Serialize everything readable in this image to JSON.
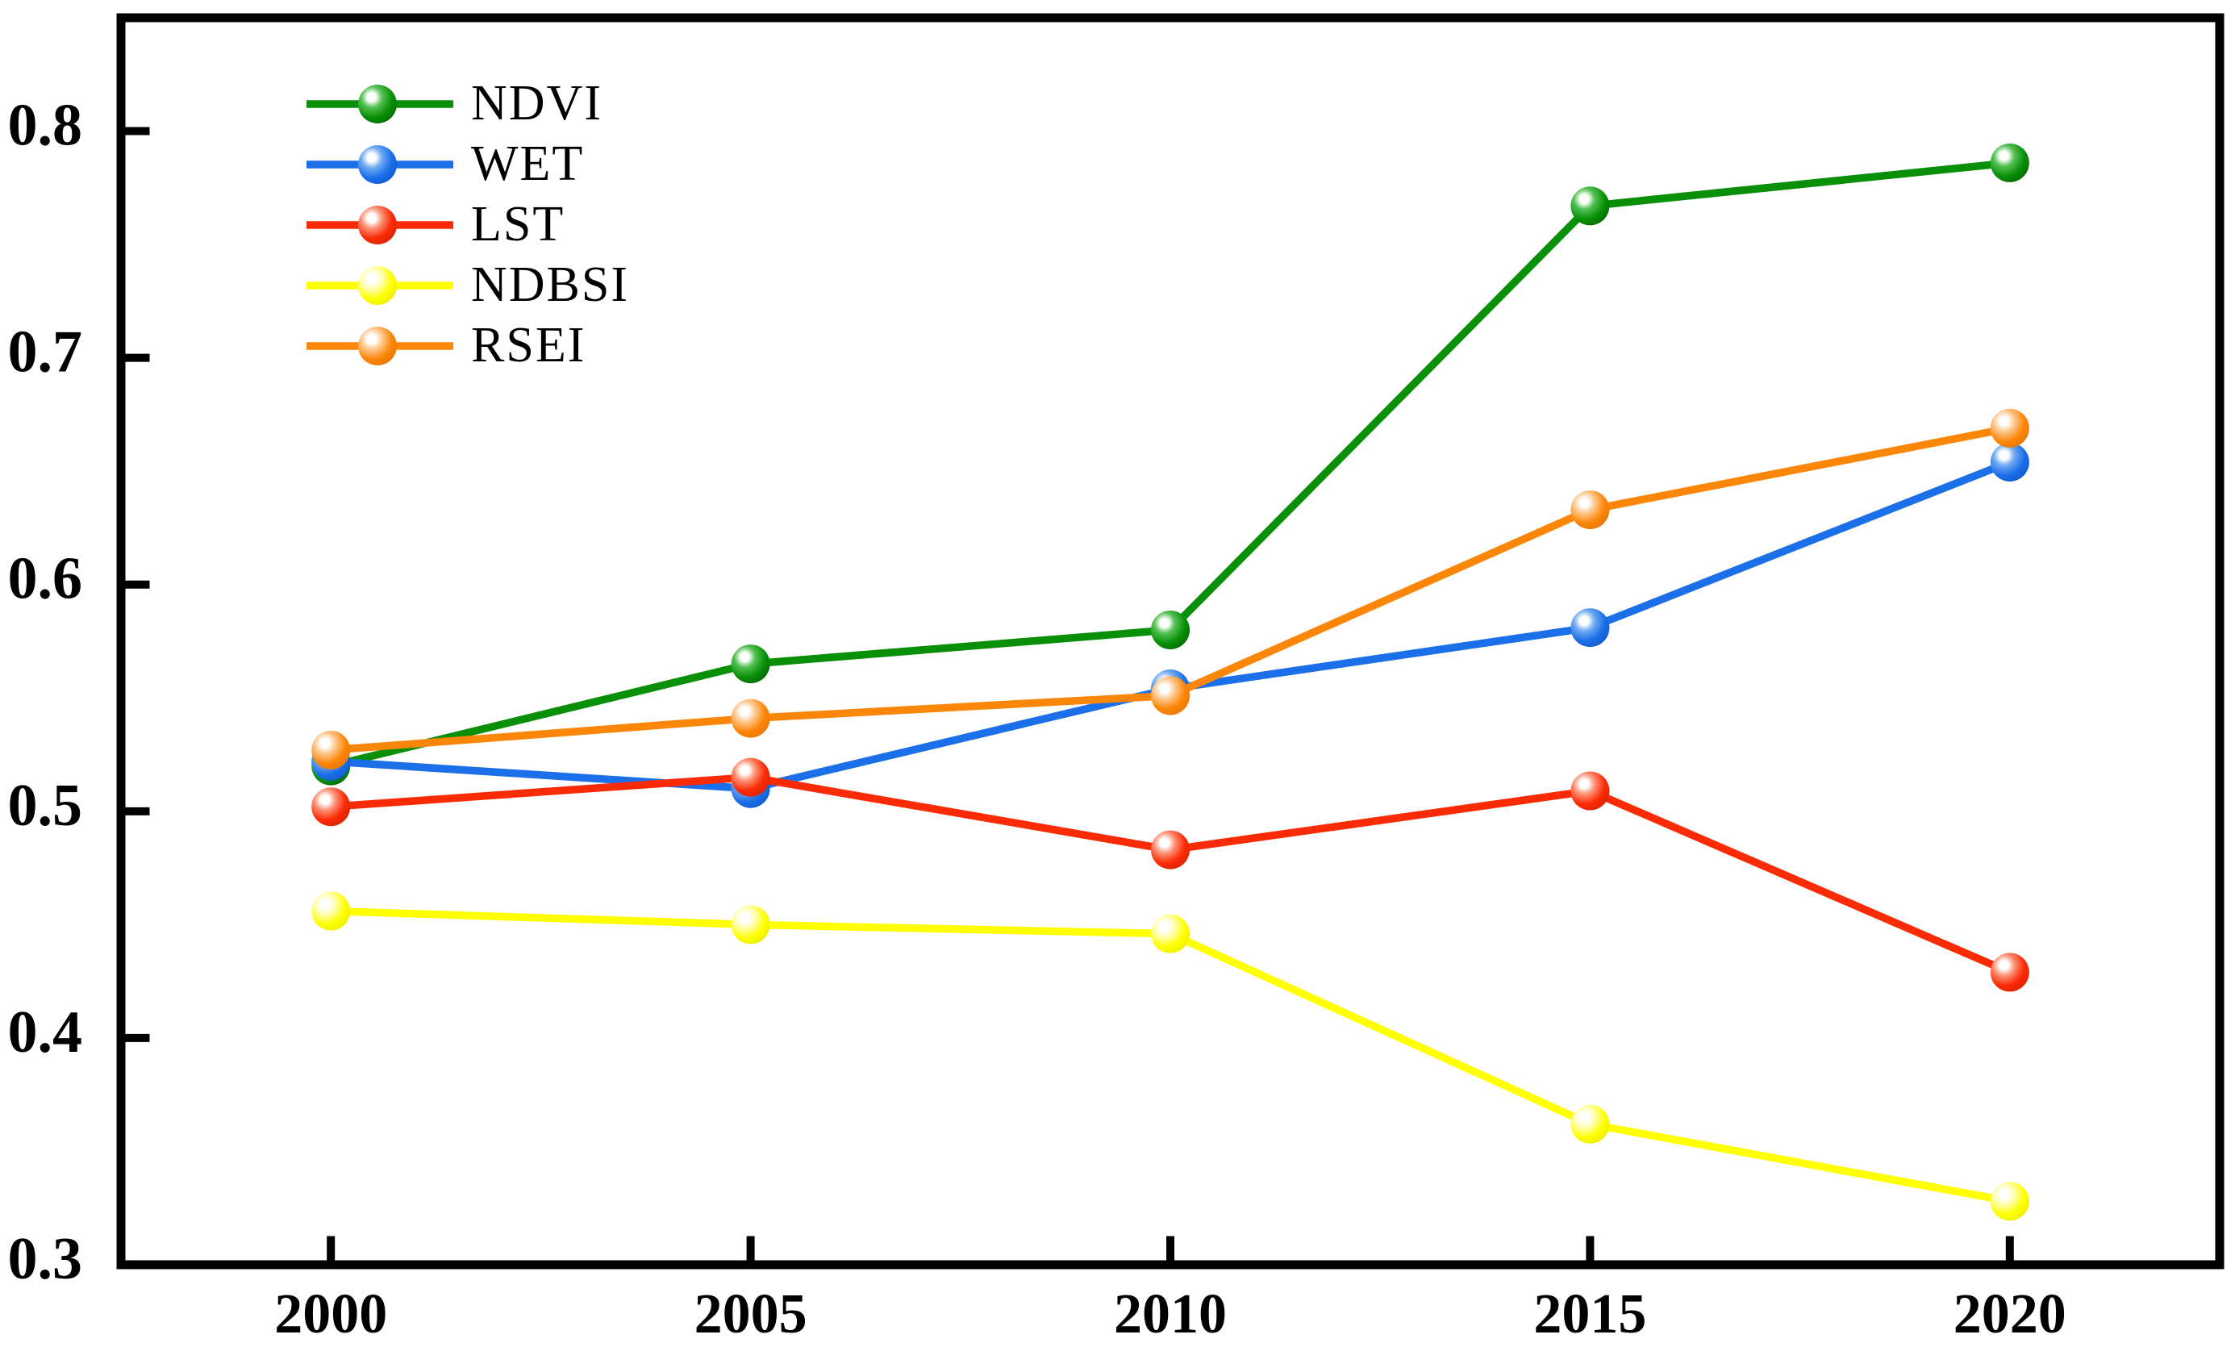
{
  "figure": {
    "background": "#ffffff",
    "frame_color": "#000000",
    "description": "Line chart of ecological remote sensing indices from 2000 to 2020"
  },
  "chart_data": {
    "type": "line",
    "title": "",
    "xlabel": "",
    "ylabel": "",
    "grid": false,
    "legend_position": "top-left-inside",
    "x": [
      2000,
      2005,
      2010,
      2015,
      2020
    ],
    "x_tick_labels": [
      "2000",
      "2005",
      "2010",
      "2015",
      "2020"
    ],
    "y_ticks": [
      0.3,
      0.4,
      0.5,
      0.6,
      0.7,
      0.8
    ],
    "y_tick_labels": [
      "0.3",
      "0.4",
      "0.5",
      "0.6",
      "0.7",
      "0.8"
    ],
    "xlim": [
      1997.5,
      2022.5
    ],
    "ylim": [
      0.3,
      0.85
    ],
    "series": [
      {
        "name": "NDVI",
        "color": "#0a9008",
        "marker_mid": "#53c053",
        "marker_edge": "#005c00",
        "values": [
          0.52,
          0.565,
          0.58,
          0.767,
          0.786
        ]
      },
      {
        "name": "WET",
        "color": "#1b6fe8",
        "marker_mid": "#6fa9f2",
        "marker_edge": "#0f52c4",
        "values": [
          0.522,
          0.51,
          0.554,
          0.581,
          0.654
        ]
      },
      {
        "name": "LST",
        "color": "#fb2b05",
        "marker_mid": "#fc9175",
        "marker_edge": "#cc2000",
        "values": [
          0.502,
          0.515,
          0.483,
          0.509,
          0.429
        ]
      },
      {
        "name": "NDBSI",
        "color": "#ffff00",
        "marker_mid": "#ffffb0",
        "marker_edge": "#e6e600",
        "values": [
          0.456,
          0.45,
          0.446,
          0.362,
          0.328
        ]
      },
      {
        "name": "RSEI",
        "color": "#fc8608",
        "marker_mid": "#fdc88e",
        "marker_edge": "#de7100",
        "values": [
          0.527,
          0.541,
          0.551,
          0.633,
          0.669
        ]
      }
    ]
  }
}
